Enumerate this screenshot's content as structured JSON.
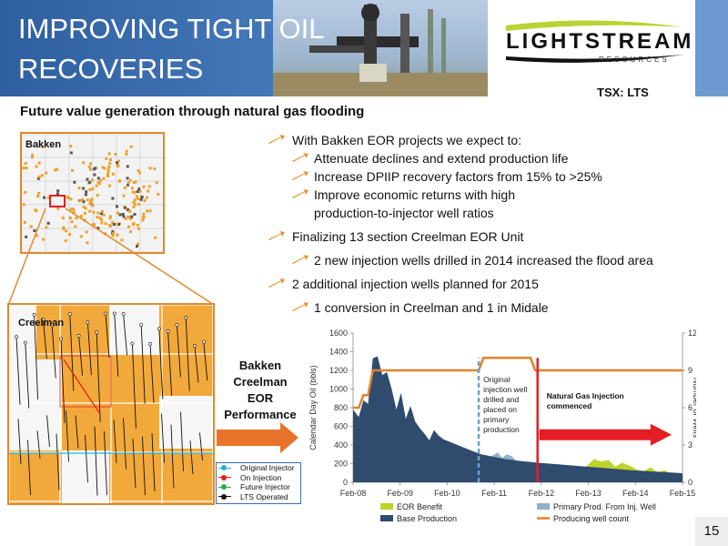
{
  "header": {
    "title_line1": "IMPROVING TIGHT OIL",
    "title_line2": "RECOVERIES",
    "logo_text": "LIGHTSTREAM",
    "logo_sub": "RESOURCES",
    "ticker": "TSX: LTS"
  },
  "subtitle": "Future value generation through natural gas flooding",
  "bullets": {
    "b1": "With Bakken EOR projects we expect to:",
    "b1_1": "Attenuate declines and extend production life",
    "b1_2": "Increase DPIIP recovery factors from 15% to >25%",
    "b1_3a": "Improve economic returns with high",
    "b1_3b": "production-to-injector well ratios",
    "b2": "Finalizing 13 section Creelman EOR Unit",
    "b2_1": "2 new injection wells drilled in 2014 increased the flood area",
    "b3": "2 additional injection wells planned for 2015",
    "b3_1": "1 conversion in Creelman and 1 in Midale"
  },
  "maps": {
    "bakken_label": "Bakken",
    "creelman_label": "Creelman",
    "legend": [
      "Original Injector",
      "On Injection",
      "Future Injector",
      "LTS Operated"
    ],
    "legend_colors": [
      "#1fb3d9",
      "#e02020",
      "#22b14c",
      "#111111"
    ]
  },
  "perf_label": [
    "Bakken",
    "Creelman",
    "EOR",
    "Performance"
  ],
  "page_number": "15",
  "chart_data": {
    "type": "area",
    "x_ticks": [
      "Feb-08",
      "Feb-09",
      "Feb-10",
      "Feb-11",
      "Feb-12",
      "Feb-13",
      "Feb-14",
      "Feb-15"
    ],
    "ylim": [
      0,
      1600
    ],
    "y_ticks": [
      0,
      200,
      400,
      600,
      800,
      1000,
      1200,
      1400,
      1600
    ],
    "ylabel": "Calendar Day Oil (bbls)",
    "y2lim": [
      0,
      12
    ],
    "y2_ticks": [
      0,
      3,
      6,
      9,
      12
    ],
    "y2label": "Number of Wells",
    "grid": false,
    "legend_position": "bottom",
    "annotations": {
      "injection": [
        "Original",
        "injection well",
        "drilled and",
        "placed on",
        "primary",
        "production"
      ],
      "gas": [
        "Natural Gas Injection",
        "commenced"
      ]
    },
    "series": [
      {
        "name": "Base Production",
        "color": "#2f4b6e",
        "x": [
          2008.08,
          2008.2,
          2008.3,
          2008.4,
          2008.5,
          2008.6,
          2008.7,
          2008.8,
          2008.9,
          2009.0,
          2009.1,
          2009.2,
          2009.3,
          2009.4,
          2009.5,
          2009.6,
          2009.7,
          2009.8,
          2009.9,
          2010.0,
          2010.2,
          2010.4,
          2010.6,
          2010.8,
          2011.0,
          2011.3,
          2011.6,
          2012.0,
          2012.5,
          2013.0,
          2013.5,
          2014.0,
          2014.5,
          2015.0,
          2015.08
        ],
        "values": [
          780,
          700,
          880,
          840,
          1330,
          1350,
          1150,
          1180,
          1000,
          780,
          960,
          680,
          820,
          650,
          580,
          520,
          450,
          560,
          500,
          460,
          420,
          380,
          340,
          300,
          280,
          250,
          230,
          210,
          190,
          170,
          150,
          130,
          115,
          100,
          95
        ]
      },
      {
        "name": "Primary Prod. From Inj. Well",
        "color": "#8fb2c9",
        "x": [
          2010.75,
          2010.85,
          2010.95,
          2011.05,
          2011.15,
          2011.25,
          2011.35,
          2011.45,
          2011.55,
          2011.65,
          2011.75,
          2011.85,
          2011.95
        ],
        "values": [
          0,
          250,
          210,
          290,
          320,
          260,
          300,
          280,
          230,
          220,
          200,
          190,
          0
        ]
      },
      {
        "name": "EOR Benefit",
        "color": "#bcd42a",
        "x": [
          2012.7,
          2012.85,
          2013.0,
          2013.1,
          2013.2,
          2013.35,
          2013.5,
          2013.65,
          2013.8,
          2013.95,
          2014.1,
          2014.25,
          2014.4,
          2014.55,
          2014.7,
          2014.85,
          2015.0,
          2015.08
        ],
        "values": [
          0,
          60,
          160,
          200,
          250,
          220,
          240,
          170,
          210,
          180,
          140,
          120,
          160,
          110,
          130,
          90,
          100,
          60
        ]
      },
      {
        "name": "Producing well count",
        "color": "#e0822a",
        "axis": "right",
        "x": [
          2008.08,
          2008.2,
          2008.3,
          2008.4,
          2008.5,
          2010.75,
          2010.85,
          2011.85,
          2011.95,
          2015.08
        ],
        "values": [
          6,
          6,
          7,
          7,
          9,
          9,
          10,
          10,
          9,
          9
        ]
      }
    ],
    "markers": [
      {
        "x": 2010.75,
        "color": "#6ba3c8",
        "style": "dashed"
      },
      {
        "x": 2012.0,
        "color": "#e31e24",
        "style": "solid"
      }
    ]
  }
}
